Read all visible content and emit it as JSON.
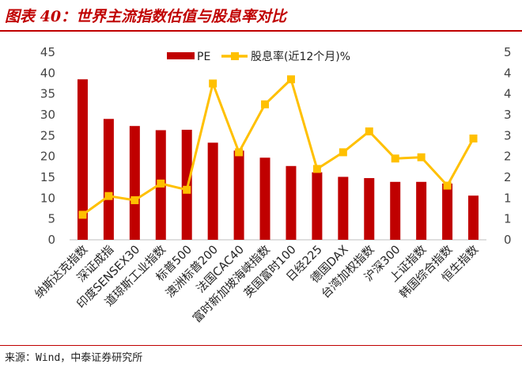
{
  "figure": {
    "title": "图表 40：世界主流指数估值与股息率对比",
    "source": "来源：Wind，中泰证券研究所"
  },
  "colors": {
    "bar": "#c00000",
    "line": "#ffc000",
    "accent": "#c00000"
  },
  "chart_data": {
    "type": "bar",
    "categories": [
      "纳斯达克指数",
      "深证成指",
      "印度SENSEX30",
      "道琼斯工业指数",
      "标普500",
      "澳洲标普200",
      "法国CAC40",
      "富时新加坡海峡指数",
      "英国富时100",
      "日经225",
      "德国DAX",
      "台湾加权指数",
      "沪深300",
      "上证指数",
      "韩国综合指数",
      "恒生指数"
    ],
    "series": [
      {
        "name": "PE",
        "type": "bar",
        "axis": "left",
        "values": [
          38.5,
          29.0,
          27.3,
          26.3,
          26.4,
          23.3,
          21.4,
          19.7,
          17.7,
          16.2,
          15.1,
          14.8,
          13.9,
          13.9,
          13.5,
          10.6
        ]
      },
      {
        "name": "股息率(近12个月)%",
        "type": "line",
        "axis": "right",
        "values": [
          0.6,
          1.05,
          0.95,
          1.35,
          1.2,
          3.75,
          2.1,
          3.25,
          3.85,
          1.7,
          2.1,
          2.6,
          1.95,
          1.98,
          1.3,
          2.43
        ]
      }
    ],
    "y_left": {
      "min": 0,
      "max": 45,
      "ticks": [
        0,
        5,
        10,
        15,
        20,
        25,
        30,
        35,
        40,
        45
      ]
    },
    "y_right": {
      "min": 0,
      "max": 4.5,
      "tick_labels": [
        "0",
        "1",
        "1",
        "2",
        "2",
        "3",
        "3",
        "4",
        "4",
        "5"
      ]
    },
    "legend_position": "top-center",
    "grid": false
  }
}
